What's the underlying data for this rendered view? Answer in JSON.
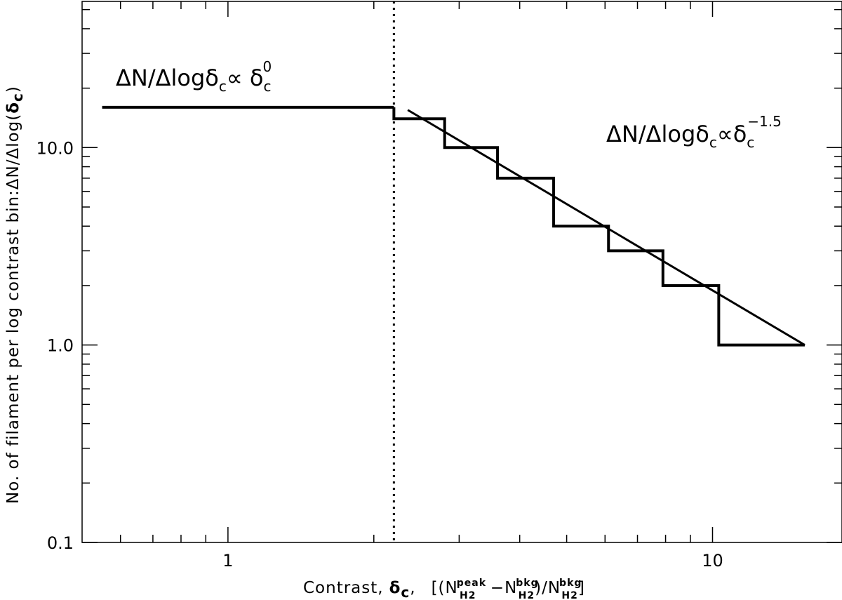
{
  "chart_data": {
    "type": "line",
    "x_scale": "log",
    "y_scale": "log",
    "xlim": [
      0.5,
      18.5
    ],
    "ylim": [
      0.1,
      55
    ],
    "grid": false,
    "x_major_ticks": [
      {
        "value": 1,
        "label": "1"
      },
      {
        "value": 10,
        "label": "10"
      }
    ],
    "y_major_ticks": [
      {
        "value": 0.1,
        "label": "0.1"
      },
      {
        "value": 1,
        "label": "1.0"
      },
      {
        "value": 10,
        "label": "10.0"
      }
    ],
    "x_minor_ticks": [
      0.6,
      0.7,
      0.8,
      0.9,
      2,
      3,
      4,
      5,
      6,
      7,
      8,
      9
    ],
    "y_minor_ticks": [
      0.2,
      0.3,
      0.4,
      0.5,
      0.6,
      0.7,
      0.8,
      0.9,
      2,
      3,
      4,
      5,
      6,
      7,
      8,
      9,
      20,
      30,
      40,
      50
    ],
    "xlabel": {
      "prefix": "Contrast,",
      "delta_symbol": "δ",
      "delta_sub": "c",
      "comma": ",",
      "open": "[(N",
      "peak_sup": "peak",
      "h2_sub": "H2",
      "minus": " −N",
      "bkg_sup": "bkg",
      "mid": ")/N",
      "close": "]"
    },
    "ylabel": {
      "text": "No. of filament per log contrast bin:ΔN/Δlog(",
      "delta_symbol": "δ",
      "delta_sub": "c",
      "close": ")"
    },
    "flat_segment": {
      "points": [
        [
          0.55,
          16
        ],
        [
          2.2,
          16
        ]
      ],
      "annotation": {
        "main": "ΔN/Δlogδ",
        "sub": "c",
        "prop": "∝ δ",
        "sub2": "c",
        "sup": "0"
      }
    },
    "vertical_line": {
      "x": 2.2,
      "style": "dotted"
    },
    "histogram_steps": [
      {
        "x_start": 2.2,
        "x_end": 2.8,
        "value": 14
      },
      {
        "x_start": 2.8,
        "x_end": 3.6,
        "value": 10
      },
      {
        "x_start": 3.6,
        "x_end": 4.7,
        "value": 7
      },
      {
        "x_start": 4.7,
        "x_end": 6.1,
        "value": 4
      },
      {
        "x_start": 6.1,
        "x_end": 7.9,
        "value": 3
      },
      {
        "x_start": 7.9,
        "x_end": 10.3,
        "value": 2
      },
      {
        "x_start": 10.3,
        "x_end": 15.5,
        "value": 1
      }
    ],
    "power_law_fit": {
      "points": [
        [
          2.35,
          15.5
        ],
        [
          15.5,
          1.0
        ]
      ],
      "annotation": {
        "main": "ΔN/Δlogδ",
        "sub": "c",
        "prop": "∝δ",
        "sub2": "c",
        "sup": "−1.5"
      }
    }
  }
}
